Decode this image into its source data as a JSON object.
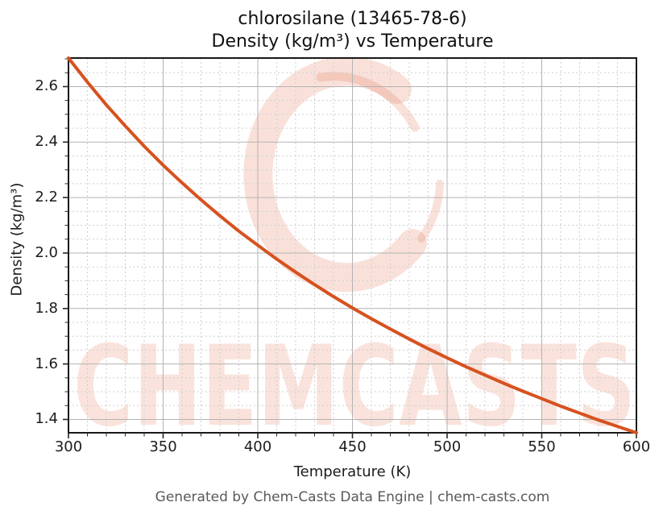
{
  "header": {
    "title_line1": "chlorosilane (13465-78-6)",
    "title_line2": "Density (kg/m³) vs Temperature"
  },
  "footer": {
    "credit": "Generated by Chem-Casts Data Engine | chem-casts.com"
  },
  "watermark": {
    "text": "CHEMCASTS",
    "logo_icon": "brush-circle-c-logo",
    "color": "#e05a32",
    "text_opacity": 0.17,
    "logo_opacity": 0.18
  },
  "colors": {
    "curve": "#d6521f",
    "major_grid": "#b3b3b3",
    "minor_grid": "#cfcfcf",
    "spine": "#1a1a1a",
    "tick": "#262626",
    "footer_text": "#595959",
    "background": "#ffffff"
  },
  "chart_data": {
    "type": "line",
    "compound": "chlorosilane",
    "cas": "13465-78-6",
    "title": "chlorosilane (13465-78-6) — Density (kg/m³) vs Temperature",
    "xlabel": "Temperature (K)",
    "ylabel": "Density (kg/m³)",
    "xlim": [
      300,
      600
    ],
    "ylim": [
      1.352,
      2.703
    ],
    "x_ticks": [
      300,
      350,
      400,
      450,
      500,
      550,
      600
    ],
    "y_ticks": [
      1.4,
      1.6,
      1.8,
      2.0,
      2.2,
      2.4,
      2.6
    ],
    "x_minor_step": 10,
    "y_minor_step": 0.05,
    "grid": true,
    "legend": false,
    "series": [
      {
        "name": "Density (kg/m³)",
        "x": [
          300,
          310,
          320,
          330,
          340,
          350,
          360,
          370,
          380,
          390,
          400,
          410,
          420,
          430,
          440,
          450,
          460,
          470,
          480,
          490,
          500,
          510,
          520,
          530,
          540,
          550,
          560,
          570,
          580,
          590,
          600
        ],
        "y": [
          2.703,
          2.616,
          2.534,
          2.458,
          2.385,
          2.317,
          2.253,
          2.192,
          2.134,
          2.079,
          2.028,
          1.978,
          1.931,
          1.886,
          1.843,
          1.802,
          1.763,
          1.726,
          1.69,
          1.655,
          1.622,
          1.59,
          1.56,
          1.53,
          1.502,
          1.475,
          1.448,
          1.423,
          1.398,
          1.375,
          1.352
        ]
      }
    ]
  }
}
